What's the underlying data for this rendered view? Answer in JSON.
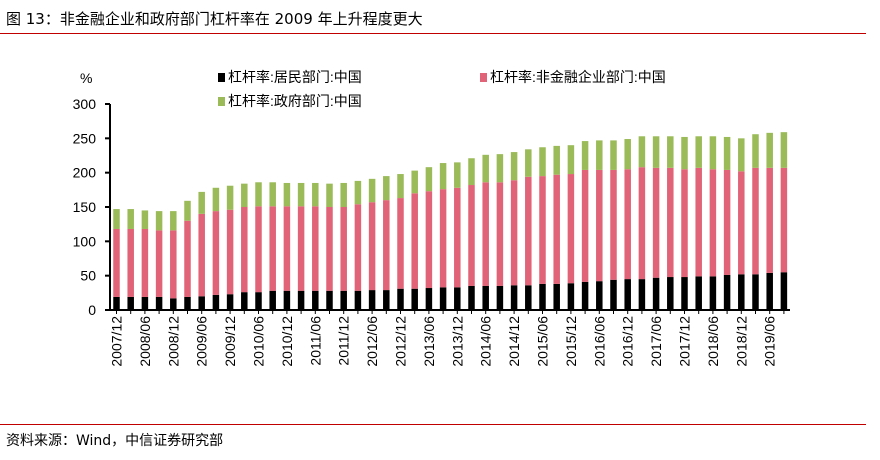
{
  "title": "图 13：非金融企业和政府部门杠杆率在 2009 年上升程度更大",
  "source": "资料来源：Wind，中信证券研究部",
  "chart_data": {
    "type": "bar",
    "stacked": true,
    "title": "",
    "ylabel": "%",
    "xlabel": "",
    "ylim": [
      0,
      300
    ],
    "yticks": [
      0,
      50,
      100,
      150,
      200,
      250,
      300
    ],
    "grid": false,
    "legend_position": "top",
    "categories": [
      "2007/12",
      "2008/03",
      "2008/06",
      "2008/09",
      "2008/12",
      "2009/03",
      "2009/06",
      "2009/09",
      "2009/12",
      "2010/03",
      "2010/06",
      "2010/09",
      "2010/12",
      "2011/03",
      "2011/06",
      "2011/09",
      "2011/12",
      "2012/03",
      "2012/06",
      "2012/09",
      "2012/12",
      "2013/03",
      "2013/06",
      "2013/09",
      "2013/12",
      "2014/03",
      "2014/06",
      "2014/09",
      "2014/12",
      "2015/03",
      "2015/06",
      "2015/09",
      "2015/12",
      "2016/03",
      "2016/06",
      "2016/09",
      "2016/12",
      "2017/03",
      "2017/06",
      "2017/09",
      "2017/12",
      "2018/03",
      "2018/06",
      "2018/09",
      "2018/12",
      "2019/03",
      "2019/06",
      "2019/09"
    ],
    "tick_labels": [
      "2007/12",
      "2008/06",
      "2008/12",
      "2009/06",
      "2009/12",
      "2010/06",
      "2010/12",
      "2011/06",
      "2011/12",
      "2012/06",
      "2012/12",
      "2013/06",
      "2013/12",
      "2014/06",
      "2014/12",
      "2015/06",
      "2015/12",
      "2016/06",
      "2016/12",
      "2017/06",
      "2017/12",
      "2018/06",
      "2018/12",
      "2019/06"
    ],
    "series": [
      {
        "name": "杠杆率:居民部门:中国",
        "color": "#000000",
        "values": [
          19,
          19,
          19,
          19,
          17,
          19,
          20,
          22,
          23,
          26,
          26,
          28,
          28,
          28,
          28,
          28,
          28,
          28,
          29,
          29,
          31,
          31,
          32,
          33,
          33,
          35,
          35,
          35,
          36,
          36,
          38,
          38,
          39,
          41,
          42,
          44,
          45,
          45,
          47,
          48,
          48,
          49,
          49,
          51,
          52,
          52,
          54,
          55
        ]
      },
      {
        "name": "杠杆率:非金融企业部门:中国",
        "color": "#e06377",
        "values": [
          99,
          99,
          99,
          97,
          99,
          111,
          120,
          122,
          123,
          124,
          125,
          123,
          123,
          123,
          123,
          122,
          122,
          126,
          128,
          131,
          132,
          139,
          141,
          143,
          145,
          147,
          151,
          151,
          153,
          158,
          157,
          159,
          159,
          163,
          162,
          160,
          160,
          163,
          160,
          159,
          157,
          158,
          156,
          153,
          150,
          155,
          153,
          152
        ]
      },
      {
        "name": "杠杆率:政府部门:中国",
        "color": "#9bbb59",
        "values": [
          29,
          29,
          27,
          28,
          28,
          29,
          32,
          34,
          35,
          34,
          35,
          35,
          34,
          34,
          34,
          34,
          35,
          34,
          34,
          35,
          35,
          33,
          35,
          38,
          37,
          39,
          40,
          41,
          41,
          40,
          42,
          42,
          42,
          42,
          43,
          43,
          44,
          45,
          46,
          46,
          47,
          46,
          48,
          48,
          48,
          49,
          51,
          52
        ]
      }
    ]
  }
}
